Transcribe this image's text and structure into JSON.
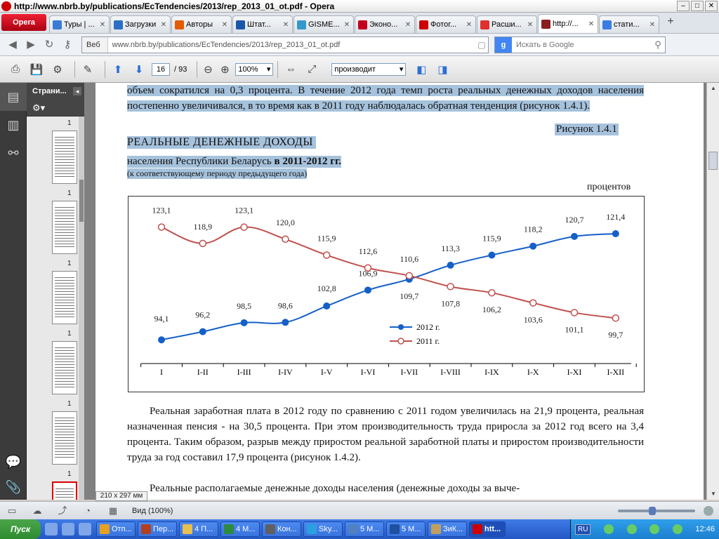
{
  "window": {
    "title": "http://www.nbrb.by/publications/EcTendencies/2013/rep_2013_01_ot.pdf - Opera"
  },
  "browser": {
    "menu_label": "Opera",
    "tabs": [
      {
        "label": "Туры | ...",
        "color": "#3a7bd5"
      },
      {
        "label": "Загрузки",
        "color": "#2b6fc4"
      },
      {
        "label": "Авторы",
        "color": "#e25b00"
      },
      {
        "label": "Штат...",
        "color": "#1a56a8"
      },
      {
        "label": "GISME...",
        "color": "#3399cc"
      },
      {
        "label": "Эконо...",
        "color": "#c4001c"
      },
      {
        "label": "Фотог...",
        "color": "#cc0000"
      },
      {
        "label": "Расши...",
        "color": "#e03030"
      },
      {
        "label": "http://...",
        "color": "#8a1d1d"
      },
      {
        "label": "стати...",
        "color": "#3b7ce4"
      }
    ],
    "active_tab": 8,
    "address": {
      "mode_label": "Веб",
      "url": "www.nbrb.by/publications/EcTendencies/2013/rep_2013_01_ot.pdf"
    },
    "search": {
      "placeholder": "Искать в Google"
    }
  },
  "pdf_toolbar": {
    "page_current": "16",
    "page_total": "/ 93",
    "zoom": "100%",
    "find_text": "производит"
  },
  "sidebar": {
    "panel_title": "Страни...",
    "thumbnails": [
      {
        "num": "1"
      },
      {
        "num": "1"
      },
      {
        "num": "1"
      },
      {
        "num": "1"
      },
      {
        "num": "1"
      },
      {
        "num": "1"
      }
    ]
  },
  "document": {
    "para1": "объем сократился на 0,3 процента. В течение 2012 года темп роста реальных денежных доходов населения постепенно увеличивался, в то время как в 2011 году наблюдалась обратная тенденция (рисунок 1.4.1).",
    "figure_ref": "Рисунок 1.4.1",
    "figure_title": "РЕАЛЬНЫЕ ДЕНЕЖНЫЕ ДОХОДЫ",
    "figure_subtitle_pre": "населения Республики Беларусь ",
    "figure_subtitle_bold": "в 2011-2012 гг.",
    "figure_note": "(к соответствующему периоду предыдущего года)",
    "units": "процентов",
    "para2": "Реальная заработная плата в 2012 году по сравнению с 2011 годом увеличилась на 21,9 процента, реальная назначенная пенсия - на 30,5 процента. При этом производительность труда приросла за 2012 год всего на 3,4 процента. Таким образом, разрыв между приростом реальной заработной платы и приростом производительности труда за год составил 17,9 процента (рисунок 1.4.2).",
    "para3": "Реальные располагаемые денежные доходы населения (денежные доходы за выче-"
  },
  "chart_data": {
    "type": "line",
    "categories": [
      "I",
      "I-II",
      "I-III",
      "I-IV",
      "I-V",
      "I-VI",
      "I-VII",
      "I-VIII",
      "I-IX",
      "I-X",
      "I-XI",
      "I-XII"
    ],
    "series": [
      {
        "name": "2012 г.",
        "color": "#1560c8",
        "marker": "filled-circle",
        "values": [
          94.1,
          96.2,
          98.5,
          98.6,
          102.8,
          106.9,
          109.7,
          113.3,
          115.9,
          118.2,
          120.7,
          121.4
        ],
        "labels": [
          "94,1",
          "96,2",
          "98,5",
          "98,6",
          "102,8",
          "106,9",
          "109,7",
          "113,3",
          "115,9",
          "118,2",
          "120,7",
          "121,4"
        ]
      },
      {
        "name": "2011 г.",
        "color": "#c0504d",
        "marker": "open-circle",
        "values": [
          123.1,
          118.9,
          123.1,
          120.0,
          115.9,
          112.6,
          110.6,
          107.8,
          106.2,
          103.6,
          101.1,
          99.7
        ],
        "labels": [
          "123,1",
          "118,9",
          "123,1",
          "120,0",
          "115,9",
          "112,6",
          "110,6",
          "107,8",
          "106,2",
          "103,6",
          "101,1",
          "99,7"
        ]
      }
    ],
    "ylim": [
      88,
      127
    ],
    "legend": "center-right",
    "grid": false
  },
  "status": {
    "page_size": "210 x 297 мм",
    "view": "Вид (100%)"
  },
  "taskbar": {
    "start": "Пуск",
    "buttons": [
      {
        "label": "Отп...",
        "color": "#e8a020"
      },
      {
        "label": "Пер...",
        "color": "#b04020"
      },
      {
        "label": "4 П...",
        "color": "#e8c050"
      },
      {
        "label": "4 М...",
        "color": "#2e8b3e"
      },
      {
        "label": "Кон...",
        "color": "#606060"
      },
      {
        "label": "Sky...",
        "color": "#2aa0e0"
      },
      {
        "label": "5 М...",
        "color": "#5080c0"
      },
      {
        "label": "5 М...",
        "color": "#2050a0"
      },
      {
        "label": "ЗиК...",
        "color": "#c0a060"
      },
      {
        "label": "htt...",
        "color": "#cc0000"
      }
    ],
    "active_button": 9,
    "lang": "RU",
    "clock": "12:46"
  }
}
